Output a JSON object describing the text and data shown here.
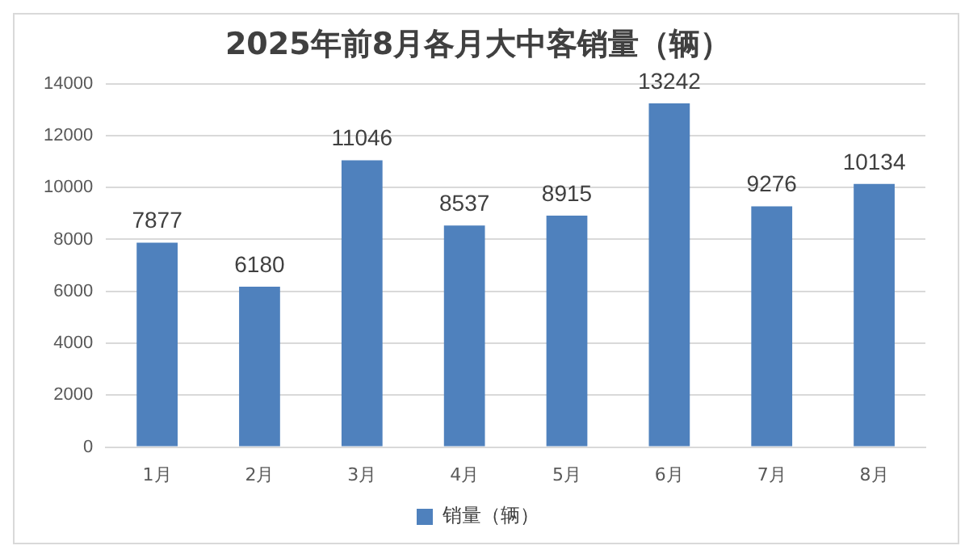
{
  "chart_data": {
    "type": "bar",
    "title": "2025年前8月各月大中客销量（辆）",
    "categories": [
      "1月",
      "2月",
      "3月",
      "4月",
      "5月",
      "6月",
      "7月",
      "8月"
    ],
    "series": [
      {
        "name": "销量（辆）",
        "color": "#4f81bd",
        "values": [
          7877,
          6180,
          11046,
          8537,
          8915,
          13242,
          9276,
          10134
        ]
      }
    ],
    "ylim": [
      0,
      14000
    ],
    "yticks": [
      0,
      2000,
      4000,
      6000,
      8000,
      10000,
      12000,
      14000
    ],
    "grid": "y",
    "legend": "bottom",
    "data_labels": true
  }
}
